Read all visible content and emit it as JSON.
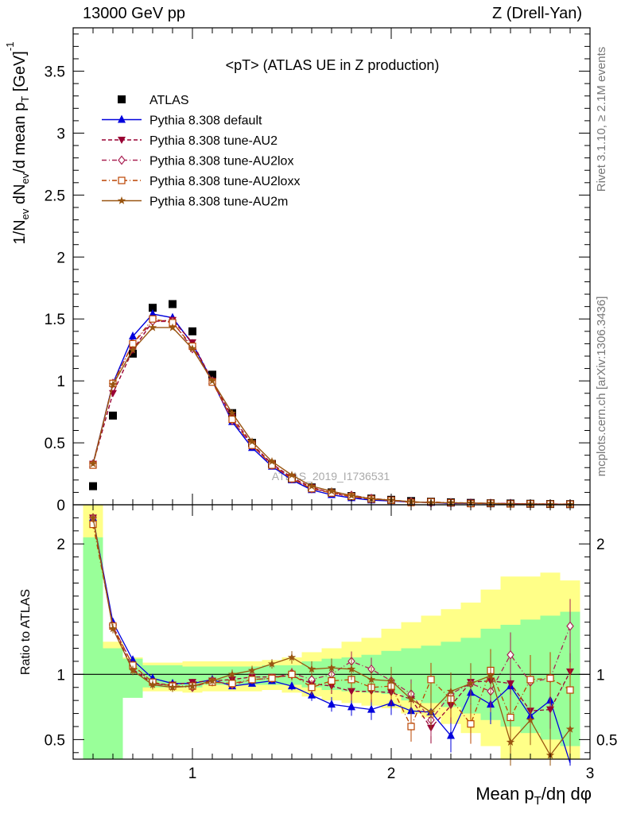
{
  "header": {
    "left": "13000 GeV pp",
    "right": "Z (Drell-Yan)"
  },
  "side_labels": {
    "rivet": "Rivet 3.1.10, ≥ 2.1M events",
    "mcplots": "mcplots.cern.ch [arXiv:1306.3436]"
  },
  "chart_data": [
    {
      "type": "line",
      "title": "<pT> (ATLAS UE in Z production)",
      "ylabel": "1/N_ev dN_ev/d mean p_T [GeV]^-1",
      "watermark": "ATLAS_2019_I1736531",
      "ylim": [
        0,
        3.85
      ],
      "xlim": [
        0.4,
        3.0
      ],
      "yticks": [
        "0",
        "0.5",
        "1",
        "1.5",
        "2",
        "2.5",
        "3",
        "3.5"
      ],
      "x": [
        0.5,
        0.6,
        0.7,
        0.8,
        0.9,
        1.0,
        1.1,
        1.2,
        1.3,
        1.4,
        1.5,
        1.6,
        1.7,
        1.8,
        1.9,
        2.0,
        2.1,
        2.2,
        2.3,
        2.4,
        2.5,
        2.6,
        2.7,
        2.8,
        2.9
      ],
      "series": [
        {
          "name": "ATLAS",
          "style": "data",
          "color": "#000000",
          "values": [
            0.15,
            0.72,
            1.22,
            1.59,
            1.62,
            1.4,
            1.05,
            0.74,
            0.5,
            0.33,
            0.21,
            0.14,
            0.1,
            0.07,
            0.05,
            0.04,
            0.03,
            0.025,
            0.02,
            0.015,
            0.012,
            0.01,
            0.008,
            0.006,
            0.005
          ]
        },
        {
          "name": "Pythia 8.308 default",
          "style": "solid",
          "marker": "triangle-up",
          "color": "#0000dd",
          "values": [
            0.33,
            0.98,
            1.36,
            1.54,
            1.51,
            1.3,
            1.0,
            0.67,
            0.46,
            0.31,
            0.2,
            0.12,
            0.08,
            0.055,
            0.037,
            0.031,
            0.022,
            0.018,
            0.011,
            0.013,
            0.009,
            0.009,
            0.006,
            0.005,
            0.0018
          ]
        },
        {
          "name": "Pythia 8.308 tune-AU2",
          "style": "dash",
          "marker": "triangle-down",
          "color": "#990033",
          "values": [
            0.33,
            0.9,
            1.25,
            1.48,
            1.49,
            1.31,
            1.0,
            0.71,
            0.49,
            0.33,
            0.22,
            0.14,
            0.095,
            0.064,
            0.046,
            0.036,
            0.024,
            0.018,
            0.016,
            0.015,
            0.01,
            0.009,
            0.006,
            0.006,
            0.0049
          ]
        },
        {
          "name": "Pythia 8.308 tune-AU2lox",
          "style": "dashdot",
          "marker": "diamond-open",
          "color": "#aa2255",
          "values": [
            0.33,
            0.98,
            1.3,
            1.48,
            1.48,
            1.26,
            1.0,
            0.68,
            0.48,
            0.32,
            0.21,
            0.13,
            0.1,
            0.077,
            0.052,
            0.038,
            0.025,
            0.016,
            0.017,
            0.014,
            0.012,
            0.011,
            0.007,
            0.006,
            0.0066
          ]
        },
        {
          "name": "Pythia 8.308 tune-AU2loxx",
          "style": "dashdot",
          "marker": "square-open",
          "color": "#bb4400",
          "values": [
            0.32,
            0.98,
            1.3,
            1.5,
            1.47,
            1.28,
            0.99,
            0.69,
            0.48,
            0.32,
            0.21,
            0.13,
            0.095,
            0.067,
            0.045,
            0.036,
            0.018,
            0.024,
            0.016,
            0.0093,
            0.012,
            0.0067,
            0.0077,
            0.0058,
            0.0044
          ]
        },
        {
          "name": "Pythia 8.308 tune-AU2m",
          "style": "solid",
          "marker": "star",
          "color": "#995511",
          "values": [
            0.33,
            0.97,
            1.25,
            1.43,
            1.43,
            1.26,
            1.0,
            0.74,
            0.51,
            0.35,
            0.24,
            0.15,
            0.11,
            0.075,
            0.048,
            0.038,
            0.025,
            0.017,
            0.017,
            0.014,
            0.012,
            0.0047,
            0.0052,
            0.0023,
            0.0029
          ]
        }
      ]
    },
    {
      "type": "line",
      "ylabel": "Ratio to ATLAS",
      "xlabel": "Mean p_T/dη dφ",
      "ylim": [
        0.35,
        2.3
      ],
      "xlim": [
        0.4,
        3.0
      ],
      "yticks": [
        "0.5",
        "1",
        "2"
      ],
      "xticks": [
        "1",
        "2",
        "3"
      ],
      "x": [
        0.5,
        0.6,
        0.7,
        0.8,
        0.9,
        1.0,
        1.1,
        1.2,
        1.3,
        1.4,
        1.5,
        1.6,
        1.7,
        1.8,
        1.9,
        2.0,
        2.1,
        2.2,
        2.3,
        2.4,
        2.5,
        2.6,
        2.7,
        2.8,
        2.9
      ],
      "band_edges": [
        0.45,
        0.55,
        0.65,
        0.75,
        0.85,
        0.95,
        1.05,
        1.15,
        1.25,
        1.35,
        1.45,
        1.55,
        1.65,
        1.75,
        1.85,
        1.95,
        2.05,
        2.15,
        2.25,
        2.35,
        2.45,
        2.55,
        2.65,
        2.75,
        2.85,
        2.95
      ],
      "band_inner": [
        [
          0.35,
          2.05
        ],
        [
          0.35,
          1.2
        ],
        [
          0.82,
          1.12
        ],
        [
          0.9,
          1.07
        ],
        [
          0.9,
          1.07
        ],
        [
          0.9,
          1.06
        ],
        [
          0.92,
          1.06
        ],
        [
          0.92,
          1.06
        ],
        [
          0.92,
          1.06
        ],
        [
          0.92,
          1.07
        ],
        [
          0.92,
          1.07
        ],
        [
          0.9,
          1.1
        ],
        [
          0.88,
          1.12
        ],
        [
          0.87,
          1.13
        ],
        [
          0.86,
          1.15
        ],
        [
          0.85,
          1.18
        ],
        [
          0.8,
          1.2
        ],
        [
          0.78,
          1.22
        ],
        [
          0.75,
          1.25
        ],
        [
          0.7,
          1.28
        ],
        [
          0.65,
          1.35
        ],
        [
          0.6,
          1.38
        ],
        [
          0.55,
          1.42
        ],
        [
          0.5,
          1.45
        ],
        [
          0.45,
          1.48
        ]
      ],
      "band_outer": [
        [
          0.35,
          2.3
        ],
        [
          0.67,
          1.25
        ],
        [
          0.84,
          1.13
        ],
        [
          0.87,
          1.09
        ],
        [
          0.87,
          1.09
        ],
        [
          0.86,
          1.1
        ],
        [
          0.87,
          1.1
        ],
        [
          0.87,
          1.1
        ],
        [
          0.87,
          1.1
        ],
        [
          0.88,
          1.11
        ],
        [
          0.86,
          1.13
        ],
        [
          0.83,
          1.17
        ],
        [
          0.8,
          1.2
        ],
        [
          0.78,
          1.25
        ],
        [
          0.76,
          1.28
        ],
        [
          0.74,
          1.35
        ],
        [
          0.7,
          1.4
        ],
        [
          0.67,
          1.45
        ],
        [
          0.62,
          1.5
        ],
        [
          0.55,
          1.55
        ],
        [
          0.45,
          1.65
        ],
        [
          0.35,
          1.75
        ],
        [
          0.35,
          1.75
        ],
        [
          0.35,
          1.78
        ],
        [
          0.35,
          1.72
        ]
      ],
      "series": [
        {
          "name": "Pythia 8.308 default",
          "color": "#0000dd",
          "values": [
            2.2,
            1.4,
            1.11,
            0.97,
            0.93,
            0.93,
            0.96,
            0.91,
            0.93,
            0.95,
            0.91,
            0.84,
            0.77,
            0.75,
            0.73,
            0.78,
            0.72,
            0.71,
            0.53,
            0.86,
            0.77,
            0.91,
            0.68,
            0.8,
            0.32
          ]
        },
        {
          "name": "Pythia 8.308 tune-AU2",
          "color": "#990033",
          "values": [
            2.2,
            1.36,
            1.04,
            0.93,
            0.92,
            0.94,
            0.95,
            0.96,
            0.98,
            0.98,
            0.99,
            0.93,
            0.91,
            0.87,
            0.87,
            0.86,
            0.81,
            0.59,
            0.76,
            0.94,
            0.95,
            0.93,
            0.72,
            0.73,
            1.02
          ]
        },
        {
          "name": "Pythia 8.308 tune-AU2lox",
          "color": "#aa2255",
          "values": [
            2.2,
            1.37,
            1.07,
            0.93,
            0.91,
            0.9,
            0.95,
            0.92,
            0.96,
            0.97,
            1.01,
            0.96,
            1.0,
            1.1,
            1.04,
            0.95,
            0.85,
            0.65,
            0.85,
            0.93,
            0.87,
            1.15,
            0.94,
            0.97,
            1.37
          ]
        },
        {
          "name": "Pythia 8.308 tune-AU2loxx",
          "color": "#bb4400",
          "values": [
            2.15,
            1.37,
            1.07,
            0.94,
            0.91,
            0.91,
            0.94,
            0.93,
            0.96,
            0.97,
            1.0,
            0.9,
            0.95,
            0.96,
            0.9,
            0.91,
            0.6,
            0.96,
            0.81,
            0.62,
            1.03,
            0.67,
            0.96,
            0.97,
            0.88
          ]
        },
        {
          "name": "Pythia 8.308 tune-AU2m",
          "color": "#995511",
          "values": [
            2.2,
            1.35,
            1.03,
            0.92,
            0.9,
            0.91,
            0.95,
            1.0,
            1.03,
            1.08,
            1.13,
            1.04,
            1.05,
            1.04,
            0.96,
            0.95,
            0.81,
            0.71,
            0.87,
            0.93,
            0.99,
            0.48,
            0.65,
            0.38,
            0.58
          ]
        }
      ]
    }
  ]
}
